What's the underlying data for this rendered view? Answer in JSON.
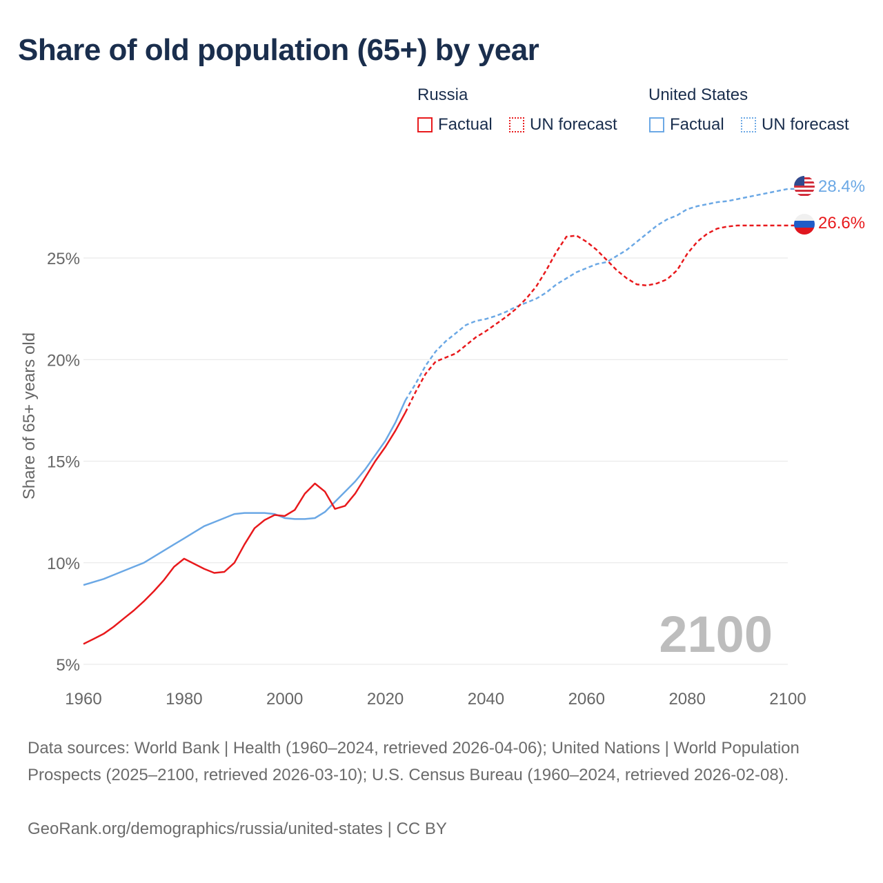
{
  "title": "Share of old population (65+) by year",
  "legend": {
    "groups": [
      {
        "name": "Russia",
        "color": "#e8191c",
        "factual_label": "Factual",
        "forecast_label": "UN forecast"
      },
      {
        "name": "United States",
        "color": "#6ba8e5",
        "factual_label": "Factual",
        "forecast_label": "UN forecast"
      }
    ]
  },
  "year_watermark": "2100",
  "chart_data": {
    "type": "line",
    "title": "Share of old population (65+) by year",
    "xlabel": "",
    "ylabel": "Share of 65+ years old",
    "xlim": [
      1960,
      2100
    ],
    "ylim": [
      5,
      29.5
    ],
    "x_ticks": [
      1960,
      1980,
      2000,
      2020,
      2040,
      2060,
      2080,
      2100
    ],
    "x_tick_labels": [
      "1960",
      "1980",
      "2000",
      "2020",
      "2040",
      "2060",
      "2080",
      "2100"
    ],
    "y_ticks": [
      5,
      10,
      15,
      20,
      25
    ],
    "y_tick_labels": [
      "5%",
      "10%",
      "15%",
      "20%",
      "25%"
    ],
    "grid": true,
    "factual_end_year": 2024,
    "series": [
      {
        "name": "United States",
        "color": "#6ba8e5",
        "end_label": "28.4%",
        "flag": "us",
        "points": [
          [
            1960,
            8.9
          ],
          [
            1962,
            9.05
          ],
          [
            1964,
            9.2
          ],
          [
            1966,
            9.4
          ],
          [
            1968,
            9.6
          ],
          [
            1970,
            9.8
          ],
          [
            1972,
            10.0
          ],
          [
            1974,
            10.3
          ],
          [
            1976,
            10.6
          ],
          [
            1978,
            10.9
          ],
          [
            1980,
            11.2
          ],
          [
            1982,
            11.5
          ],
          [
            1984,
            11.8
          ],
          [
            1986,
            12.0
          ],
          [
            1988,
            12.2
          ],
          [
            1990,
            12.4
          ],
          [
            1992,
            12.45
          ],
          [
            1994,
            12.45
          ],
          [
            1996,
            12.45
          ],
          [
            1998,
            12.4
          ],
          [
            2000,
            12.2
          ],
          [
            2002,
            12.15
          ],
          [
            2004,
            12.15
          ],
          [
            2006,
            12.2
          ],
          [
            2008,
            12.5
          ],
          [
            2010,
            13.0
          ],
          [
            2012,
            13.5
          ],
          [
            2014,
            14.0
          ],
          [
            2016,
            14.6
          ],
          [
            2018,
            15.3
          ],
          [
            2020,
            16.0
          ],
          [
            2022,
            16.9
          ],
          [
            2024,
            18.0
          ],
          [
            2026,
            18.8
          ],
          [
            2028,
            19.7
          ],
          [
            2030,
            20.4
          ],
          [
            2032,
            20.9
          ],
          [
            2034,
            21.3
          ],
          [
            2036,
            21.7
          ],
          [
            2038,
            21.9
          ],
          [
            2040,
            22.0
          ],
          [
            2042,
            22.15
          ],
          [
            2044,
            22.35
          ],
          [
            2046,
            22.6
          ],
          [
            2048,
            22.8
          ],
          [
            2050,
            23.0
          ],
          [
            2052,
            23.3
          ],
          [
            2054,
            23.7
          ],
          [
            2056,
            24.0
          ],
          [
            2058,
            24.3
          ],
          [
            2060,
            24.5
          ],
          [
            2062,
            24.7
          ],
          [
            2064,
            24.8
          ],
          [
            2066,
            25.1
          ],
          [
            2068,
            25.4
          ],
          [
            2070,
            25.8
          ],
          [
            2072,
            26.2
          ],
          [
            2074,
            26.6
          ],
          [
            2076,
            26.9
          ],
          [
            2078,
            27.1
          ],
          [
            2080,
            27.4
          ],
          [
            2082,
            27.55
          ],
          [
            2084,
            27.65
          ],
          [
            2086,
            27.75
          ],
          [
            2088,
            27.8
          ],
          [
            2090,
            27.9
          ],
          [
            2092,
            28.0
          ],
          [
            2094,
            28.1
          ],
          [
            2096,
            28.2
          ],
          [
            2098,
            28.3
          ],
          [
            2100,
            28.4
          ]
        ]
      },
      {
        "name": "Russia",
        "color": "#e8191c",
        "end_label": "26.6%",
        "flag": "ru",
        "points": [
          [
            1960,
            6.0
          ],
          [
            1962,
            6.25
          ],
          [
            1964,
            6.5
          ],
          [
            1966,
            6.85
          ],
          [
            1968,
            7.25
          ],
          [
            1970,
            7.65
          ],
          [
            1972,
            8.1
          ],
          [
            1974,
            8.6
          ],
          [
            1976,
            9.15
          ],
          [
            1978,
            9.8
          ],
          [
            1980,
            10.2
          ],
          [
            1982,
            9.95
          ],
          [
            1984,
            9.7
          ],
          [
            1986,
            9.5
          ],
          [
            1988,
            9.55
          ],
          [
            1990,
            10.0
          ],
          [
            1992,
            10.9
          ],
          [
            1994,
            11.7
          ],
          [
            1996,
            12.1
          ],
          [
            1998,
            12.35
          ],
          [
            2000,
            12.3
          ],
          [
            2002,
            12.6
          ],
          [
            2004,
            13.4
          ],
          [
            2006,
            13.9
          ],
          [
            2008,
            13.5
          ],
          [
            2010,
            12.65
          ],
          [
            2012,
            12.8
          ],
          [
            2014,
            13.4
          ],
          [
            2016,
            14.2
          ],
          [
            2018,
            15.0
          ],
          [
            2020,
            15.7
          ],
          [
            2022,
            16.5
          ],
          [
            2024,
            17.4
          ],
          [
            2026,
            18.4
          ],
          [
            2028,
            19.3
          ],
          [
            2030,
            19.9
          ],
          [
            2032,
            20.1
          ],
          [
            2034,
            20.3
          ],
          [
            2036,
            20.7
          ],
          [
            2038,
            21.1
          ],
          [
            2040,
            21.4
          ],
          [
            2042,
            21.75
          ],
          [
            2044,
            22.1
          ],
          [
            2046,
            22.5
          ],
          [
            2048,
            23.0
          ],
          [
            2050,
            23.6
          ],
          [
            2052,
            24.4
          ],
          [
            2054,
            25.3
          ],
          [
            2056,
            26.05
          ],
          [
            2058,
            26.1
          ],
          [
            2060,
            25.8
          ],
          [
            2062,
            25.4
          ],
          [
            2064,
            24.9
          ],
          [
            2066,
            24.4
          ],
          [
            2068,
            24.0
          ],
          [
            2070,
            23.7
          ],
          [
            2072,
            23.65
          ],
          [
            2074,
            23.75
          ],
          [
            2076,
            23.95
          ],
          [
            2078,
            24.4
          ],
          [
            2080,
            25.2
          ],
          [
            2082,
            25.8
          ],
          [
            2084,
            26.2
          ],
          [
            2086,
            26.45
          ],
          [
            2088,
            26.55
          ],
          [
            2090,
            26.6
          ],
          [
            2092,
            26.6
          ],
          [
            2094,
            26.6
          ],
          [
            2096,
            26.6
          ],
          [
            2098,
            26.6
          ],
          [
            2100,
            26.6
          ]
        ]
      }
    ]
  },
  "footer": {
    "sources": "Data sources: World Bank | Health (1960–2024, retrieved 2026-04-06); United Nations | World Population Prospects (2025–2100, retrieved 2026-03-10); U.S. Census Bureau (1960–2024, retrieved 2026-02-08).",
    "url": "GeoRank.org/demographics/russia/united-states | CC BY"
  }
}
